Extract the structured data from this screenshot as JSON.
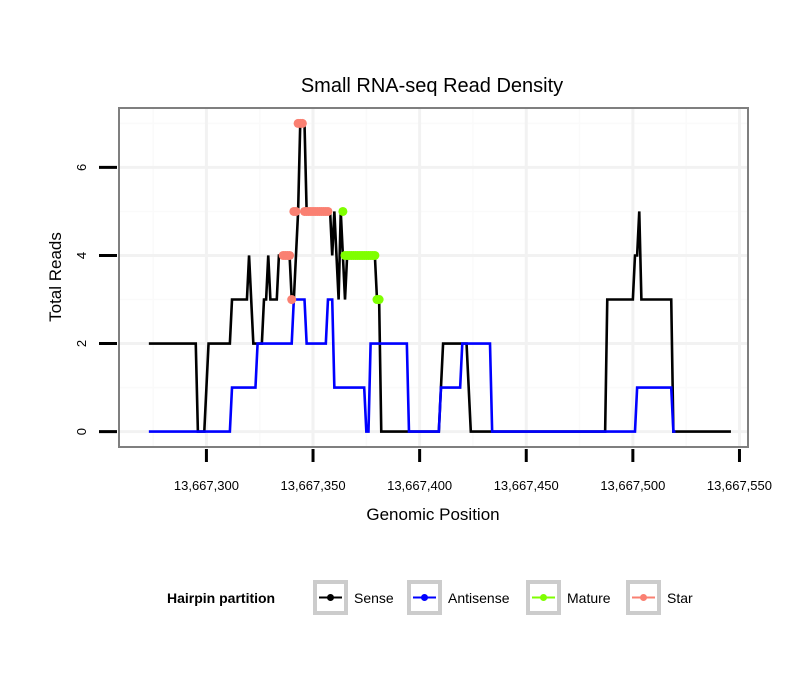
{
  "chart_data": {
    "type": "line",
    "title": "Small RNA-seq Read Density",
    "xlabel": "Genomic Position",
    "ylabel": "Total Reads",
    "xlim": [
      13667259,
      13667554
    ],
    "ylim": [
      -0.35,
      7.35
    ],
    "x_ticks": [
      13667300,
      13667350,
      13667400,
      13667450,
      13667500,
      13667550
    ],
    "x_tick_labels": [
      "13,667,300",
      "13,667,350",
      "13,667,400",
      "13,667,450",
      "13,667,500",
      "13,667,550"
    ],
    "y_ticks": [
      0,
      2,
      4,
      6
    ],
    "y_tick_labels": [
      "0",
      "2",
      "4",
      "6"
    ],
    "grid": true,
    "legend": {
      "title": "Hairpin partition",
      "placement": "bottom",
      "entries": [
        "Sense",
        "Antisense",
        "Mature",
        "Star"
      ]
    },
    "series": [
      {
        "name": "Sense",
        "color": "#000000",
        "points": [
          [
            13667273,
            2
          ],
          [
            13667295,
            2
          ],
          [
            13667296,
            0
          ],
          [
            13667299,
            0
          ],
          [
            13667300,
            1
          ],
          [
            13667301,
            2
          ],
          [
            13667311,
            2
          ],
          [
            13667312,
            3
          ],
          [
            13667319,
            3
          ],
          [
            13667320,
            4
          ],
          [
            13667322,
            2
          ],
          [
            13667326,
            2
          ],
          [
            13667327,
            3
          ],
          [
            13667328,
            3
          ],
          [
            13667329,
            4
          ],
          [
            13667330,
            3
          ],
          [
            13667333,
            3
          ],
          [
            13667334,
            4
          ],
          [
            13667339,
            4
          ],
          [
            13667340,
            3
          ],
          [
            13667341,
            3
          ],
          [
            13667343,
            5
          ],
          [
            13667344,
            7
          ],
          [
            13667346,
            7
          ],
          [
            13667347,
            5
          ],
          [
            13667358,
            5
          ],
          [
            13667359,
            4
          ],
          [
            13667360,
            5
          ],
          [
            13667361,
            4
          ],
          [
            13667362,
            3
          ],
          [
            13667363,
            5
          ],
          [
            13667364,
            4
          ],
          [
            13667365,
            3
          ],
          [
            13667366,
            4
          ],
          [
            13667379,
            4
          ],
          [
            13667380,
            3
          ],
          [
            13667381,
            3
          ],
          [
            13667382,
            0
          ],
          [
            13667409,
            0
          ],
          [
            13667410,
            1
          ],
          [
            13667411,
            2
          ],
          [
            13667422,
            2
          ],
          [
            13667423,
            1
          ],
          [
            13667424,
            0
          ],
          [
            13667487,
            0
          ],
          [
            13667488,
            3
          ],
          [
            13667500,
            3
          ],
          [
            13667501,
            4
          ],
          [
            13667502,
            4
          ],
          [
            13667503,
            5
          ],
          [
            13667504,
            3
          ],
          [
            13667518,
            3
          ],
          [
            13667519,
            0
          ],
          [
            13667546,
            0
          ]
        ]
      },
      {
        "name": "Antisense",
        "color": "#0000ff",
        "points": [
          [
            13667273,
            0
          ],
          [
            13667311,
            0
          ],
          [
            13667312,
            1
          ],
          [
            13667323,
            1
          ],
          [
            13667324,
            2
          ],
          [
            13667340,
            2
          ],
          [
            13667341,
            3
          ],
          [
            13667346,
            3
          ],
          [
            13667347,
            2
          ],
          [
            13667356,
            2
          ],
          [
            13667357,
            3
          ],
          [
            13667359,
            3
          ],
          [
            13667360,
            1
          ],
          [
            13667374,
            1
          ],
          [
            13667375,
            0
          ],
          [
            13667376,
            0
          ],
          [
            13667377,
            2
          ],
          [
            13667394,
            2
          ],
          [
            13667395,
            0
          ],
          [
            13667409,
            0
          ],
          [
            13667410,
            1
          ],
          [
            13667419,
            1
          ],
          [
            13667420,
            2
          ],
          [
            13667433,
            2
          ],
          [
            13667434,
            0
          ],
          [
            13667487,
            0
          ],
          [
            13667488,
            0
          ],
          [
            13667501,
            0
          ],
          [
            13667502,
            1
          ],
          [
            13667518,
            1
          ],
          [
            13667519,
            0
          ],
          [
            13667520,
            0
          ]
        ]
      },
      {
        "name": "Mature",
        "color": "#7fff00",
        "points": [
          [
            13667364,
            5
          ],
          [
            13667365,
            4
          ],
          [
            13667366,
            4
          ],
          [
            13667367,
            4
          ],
          [
            13667368,
            4
          ],
          [
            13667369,
            4
          ],
          [
            13667370,
            4
          ],
          [
            13667371,
            4
          ],
          [
            13667372,
            4
          ],
          [
            13667373,
            4
          ],
          [
            13667374,
            4
          ],
          [
            13667375,
            4
          ],
          [
            13667376,
            4
          ],
          [
            13667377,
            4
          ],
          [
            13667378,
            4
          ],
          [
            13667379,
            4
          ],
          [
            13667380,
            3
          ],
          [
            13667381,
            3
          ]
        ]
      },
      {
        "name": "Star",
        "color": "#fa8072",
        "points": [
          [
            13667336,
            4
          ],
          [
            13667337,
            4
          ],
          [
            13667338,
            4
          ],
          [
            13667339,
            4
          ],
          [
            13667340,
            3
          ],
          [
            13667341,
            5
          ],
          [
            13667342,
            5
          ],
          [
            13667343,
            7
          ],
          [
            13667344,
            7
          ],
          [
            13667345,
            7
          ],
          [
            13667346,
            5
          ],
          [
            13667347,
            5
          ],
          [
            13667348,
            5
          ],
          [
            13667349,
            5
          ],
          [
            13667350,
            5
          ],
          [
            13667351,
            5
          ],
          [
            13667352,
            5
          ],
          [
            13667353,
            5
          ],
          [
            13667354,
            5
          ],
          [
            13667355,
            5
          ],
          [
            13667356,
            5
          ],
          [
            13667357,
            5
          ]
        ]
      }
    ]
  }
}
